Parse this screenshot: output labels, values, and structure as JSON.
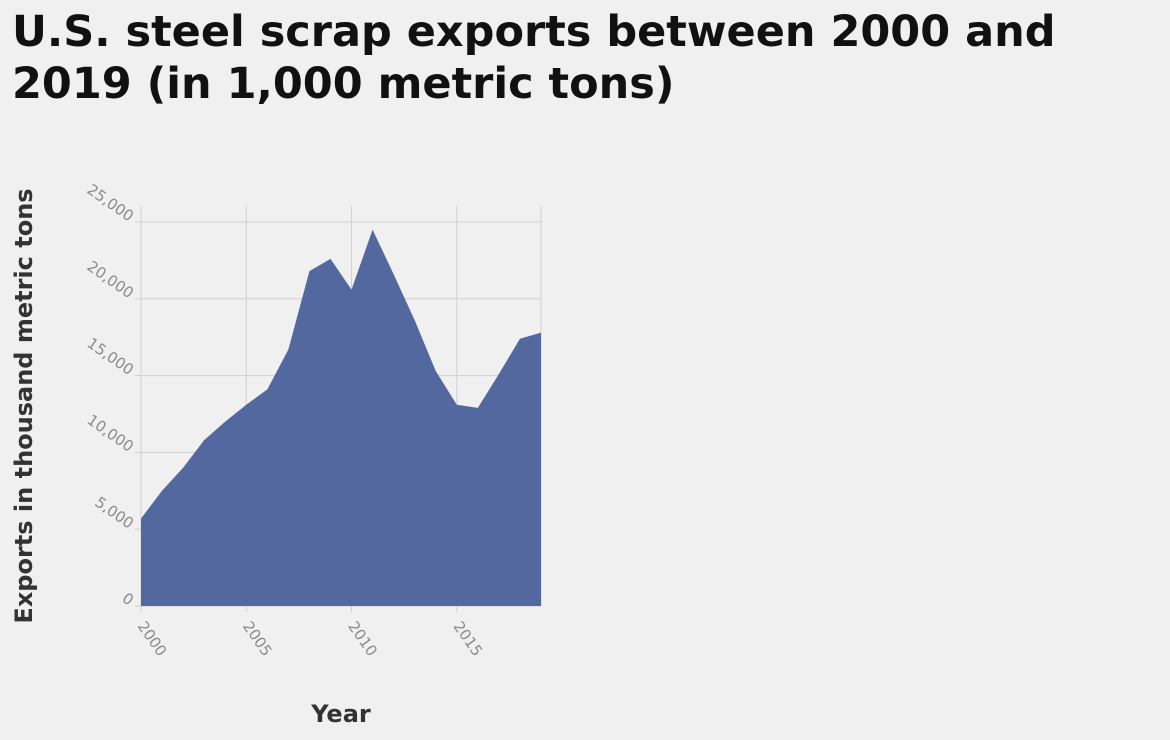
{
  "chart_data": {
    "type": "area",
    "title": "U.S. steel scrap exports between 2000 and 2019 (in 1,000 metric tons)",
    "xlabel": "Year",
    "ylabel": "Exports in thousand metric tons",
    "x": [
      2000,
      2001,
      2002,
      2003,
      2004,
      2005,
      2006,
      2007,
      2008,
      2009,
      2010,
      2011,
      2012,
      2013,
      2014,
      2015,
      2016,
      2017,
      2018,
      2019
    ],
    "series": [
      {
        "values": [
          5700,
          7500,
          9000,
          10800,
          12000,
          13100,
          14100,
          16700,
          21800,
          22600,
          20600,
          24500,
          21600,
          18600,
          15300,
          13100,
          12900,
          15100,
          17400,
          17800
        ]
      }
    ],
    "xlim": [
      2000,
      2019
    ],
    "ylim": [
      0,
      25000
    ],
    "xticks": [
      "2000",
      "2005",
      "2010",
      "2015"
    ],
    "yticks": [
      "0",
      "5,000",
      "10,000",
      "15,000",
      "20,000",
      "25,000"
    ],
    "grid": true,
    "legend": "none",
    "colors": {
      "area_fill": "#53689e",
      "grid": "#d0d0d0",
      "background": "#f0f0f0",
      "tick_label": "#8a8a8a",
      "axis_title": "#333333",
      "title": "#111111"
    }
  }
}
